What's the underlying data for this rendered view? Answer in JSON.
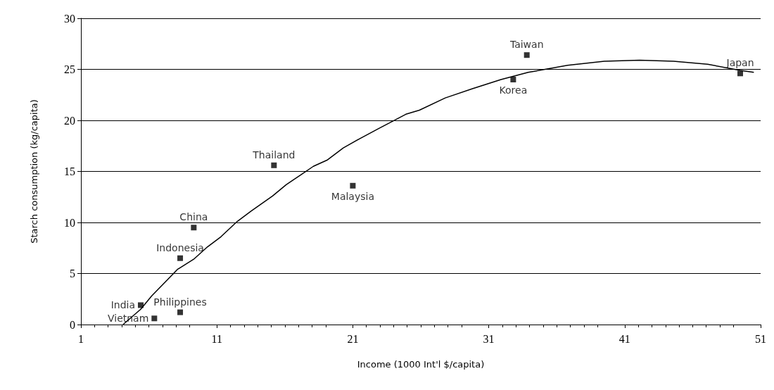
{
  "chart_data": {
    "type": "scatter",
    "xlabel": "Income (1000 Int'l $/capita)",
    "ylabel": "Starch consumption (kg/capita)",
    "xlim": [
      1,
      51
    ],
    "xticks": [
      1,
      11,
      21,
      31,
      41,
      51
    ],
    "ylim": [
      0,
      30
    ],
    "yticks": [
      0,
      5,
      10,
      15,
      20,
      25,
      30
    ],
    "grid": "y",
    "marker": "square",
    "series": [
      {
        "color": "#000000",
        "x": [
          6.4,
          5.4,
          8.3,
          8.3,
          9.3,
          15.2,
          21.0,
          32.8,
          33.8,
          49.5
        ],
        "values": [
          0.6,
          1.9,
          1.2,
          6.5,
          9.5,
          15.6,
          13.6,
          24.0,
          26.4,
          24.6
        ]
      },
      {
        "type": "line",
        "color": "#000000",
        "marker": "none",
        "x": [
          4.1,
          5.4,
          6.2,
          8.1,
          9.3,
          10.3,
          11.3,
          12.5,
          13.5,
          15.1,
          16.1,
          17.1,
          18.1,
          19.1,
          20.3,
          21.5,
          22.9,
          24.9,
          25.9,
          27.8,
          29.8,
          31.9,
          33.9,
          36.8,
          39.5,
          42.1,
          44.6,
          47.1,
          49.5,
          50.5
        ],
        "values": [
          0,
          1.5,
          2.8,
          5.4,
          6.4,
          7.6,
          8.6,
          10.1,
          11.1,
          12.6,
          13.7,
          14.6,
          15.5,
          16.1,
          17.3,
          18.2,
          19.2,
          20.6,
          21.0,
          22.2,
          23.1,
          24.0,
          24.7,
          25.4,
          25.8,
          25.9,
          25.8,
          25.5,
          24.9,
          24.7
        ]
      }
    ],
    "annotations": [
      {
        "text": "Vietnam",
        "x": 6.4,
        "y": 0.6
      },
      {
        "text": "India",
        "x": 5.4,
        "y": 1.9
      },
      {
        "text": "Philippines",
        "x": 8.3,
        "y": 1.2
      },
      {
        "text": "Indonesia",
        "x": 8.3,
        "y": 6.5
      },
      {
        "text": "China",
        "x": 9.3,
        "y": 9.5
      },
      {
        "text": "Thailand",
        "x": 15.2,
        "y": 15.6
      },
      {
        "text": "Malaysia",
        "x": 21.0,
        "y": 13.6
      },
      {
        "text": "Korea",
        "x": 32.8,
        "y": 24.0
      },
      {
        "text": "Taiwan",
        "x": 33.8,
        "y": 26.4
      },
      {
        "text": "Japan",
        "x": 49.5,
        "y": 24.6
      }
    ]
  }
}
